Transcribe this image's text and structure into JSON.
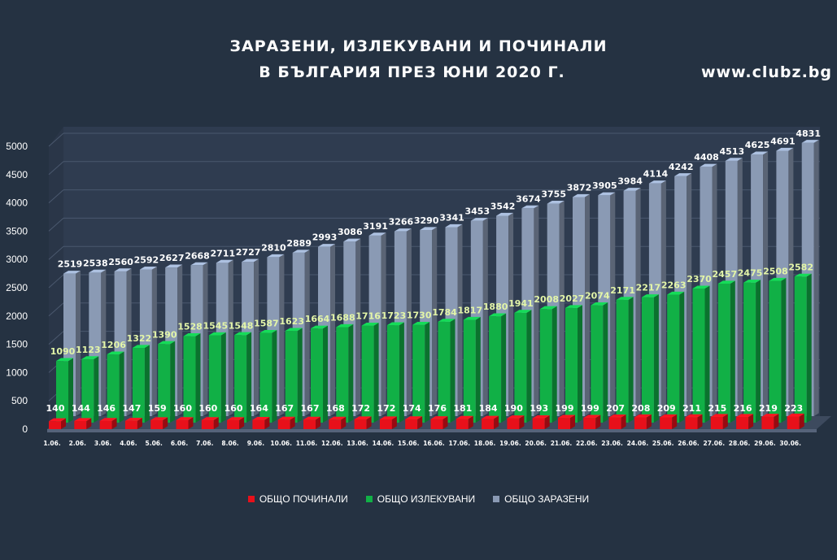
{
  "header": {
    "title_line1": "ЗАРАЗЕНИ, ИЗЛЕКУВАНИ И ПОЧИНАЛИ",
    "title_line2": "В БЪЛГАРИЯ ПРЕЗ ЮНИ 2020 Г.",
    "site": "www.clubz.bg"
  },
  "colors": {
    "background": "#253242",
    "plot_back": "#2f3c50",
    "deaths": "#e8101a",
    "recovered": "#11b046",
    "infected": "#8a9ab4"
  },
  "chart_data": {
    "type": "bar",
    "title": "ЗАРАЗЕНИ, ИЗЛЕКУВАНИ И ПОЧИНАЛИ В БЪЛГАРИЯ ПРЕЗ ЮНИ 2020 Г.",
    "xlabel": "",
    "ylabel": "",
    "ylim": [
      0,
      5000
    ],
    "yticks": [
      "0",
      "500",
      "1000",
      "1500",
      "2000",
      "2500",
      "3000",
      "3500",
      "4000",
      "4500",
      "5000"
    ],
    "categories": [
      "1.06.",
      "2.06.",
      "3.06.",
      "4.06.",
      "5.06.",
      "6.06.",
      "7.06.",
      "8.06.",
      "9.06.",
      "10.06.",
      "11.06.",
      "12.06.",
      "13.06.",
      "14.06.",
      "15.06.",
      "16.06.",
      "17.06.",
      "18.06.",
      "19.06.",
      "20.06.",
      "21.06.",
      "22.06.",
      "23.06.",
      "24.06.",
      "25.06.",
      "26.06.",
      "27.06.",
      "28.06.",
      "29.06.",
      "30.06."
    ],
    "series": [
      {
        "name": "ОБЩО ПОЧИНАЛИ",
        "color": "#e8101a",
        "values": [
          140,
          144,
          146,
          147,
          159,
          160,
          160,
          160,
          164,
          167,
          167,
          168,
          172,
          172,
          174,
          176,
          181,
          184,
          190,
          193,
          199,
          199,
          207,
          208,
          209,
          211,
          215,
          216,
          219,
          223
        ]
      },
      {
        "name": "ОБЩО ИЗЛЕКУВАНИ",
        "color": "#11b046",
        "values": [
          1090,
          1123,
          1206,
          1322,
          1390,
          1528,
          1545,
          1548,
          1587,
          1623,
          1664,
          1688,
          1716,
          1723,
          1730,
          1784,
          1817,
          1880,
          1941,
          2008,
          2027,
          2074,
          2171,
          2217,
          2263,
          2370,
          2457,
          2475,
          2508,
          2582
        ]
      },
      {
        "name": "ОБЩО ЗАРАЗЕНИ",
        "color": "#8a9ab4",
        "values": [
          2519,
          2538,
          2560,
          2592,
          2627,
          2668,
          2711,
          2727,
          2810,
          2889,
          2993,
          3086,
          3191,
          3266,
          3290,
          3341,
          3453,
          3542,
          3674,
          3755,
          3872,
          3905,
          3984,
          4114,
          4242,
          4408,
          4513,
          4625,
          4691,
          4831
        ]
      }
    ],
    "legend": "bottom"
  }
}
